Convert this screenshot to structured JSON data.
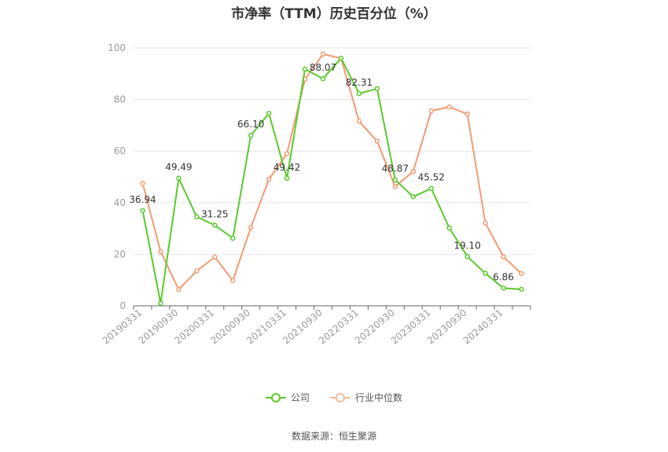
{
  "title": "市净率（TTM）历史百分位（%）",
  "source_text": "数据来源：恒生聚源",
  "colors": {
    "company": "#5ac92b",
    "industry": "#f39a73",
    "grid": "#e6e6e6",
    "axis": "#999999",
    "label": "#333333"
  },
  "chart_data": {
    "type": "line",
    "ylim": [
      0,
      100
    ],
    "yticks": [
      0,
      20,
      40,
      60,
      80,
      100
    ],
    "x": [
      "20190331",
      "20190630",
      "20190930",
      "20191231",
      "20200331",
      "20200630",
      "20200930",
      "20201231",
      "20210331",
      "20210630",
      "20210930",
      "20211231",
      "20220331",
      "20220630",
      "20220930",
      "20221231",
      "20230331",
      "20230630",
      "20230930",
      "20231231",
      "20240331",
      "20240630"
    ],
    "xtick_labels": [
      "20190331",
      "20190930",
      "20200331",
      "20200930",
      "20210331",
      "20210930",
      "20220331",
      "20220930",
      "20230331",
      "20230930",
      "20240331"
    ],
    "series": [
      {
        "name": "公司",
        "color": "#5ac92b",
        "values": [
          36.94,
          1.0,
          49.49,
          34.5,
          31.25,
          26.2,
          66.1,
          74.6,
          49.42,
          91.8,
          88.07,
          96.0,
          82.31,
          84.2,
          48.87,
          42.3,
          45.52,
          30.2,
          19.1,
          12.6,
          6.86,
          6.4
        ],
        "labels": [
          "36.94",
          "",
          "49.49",
          "",
          "31.25",
          "",
          "66.10",
          "",
          "49.42",
          "",
          "88.07",
          "",
          "82.31",
          "",
          "48.87",
          "",
          "45.52",
          "",
          "19.10",
          "",
          "6.86",
          ""
        ]
      },
      {
        "name": "行业中位数",
        "color": "#f39a73",
        "values": [
          47.5,
          21.0,
          6.3,
          13.5,
          18.9,
          9.8,
          30.4,
          49.1,
          59.0,
          87.9,
          97.6,
          96.0,
          71.6,
          63.8,
          46.2,
          52.1,
          75.6,
          77.1,
          74.4,
          32.1,
          19.0,
          12.5
        ]
      }
    ]
  }
}
